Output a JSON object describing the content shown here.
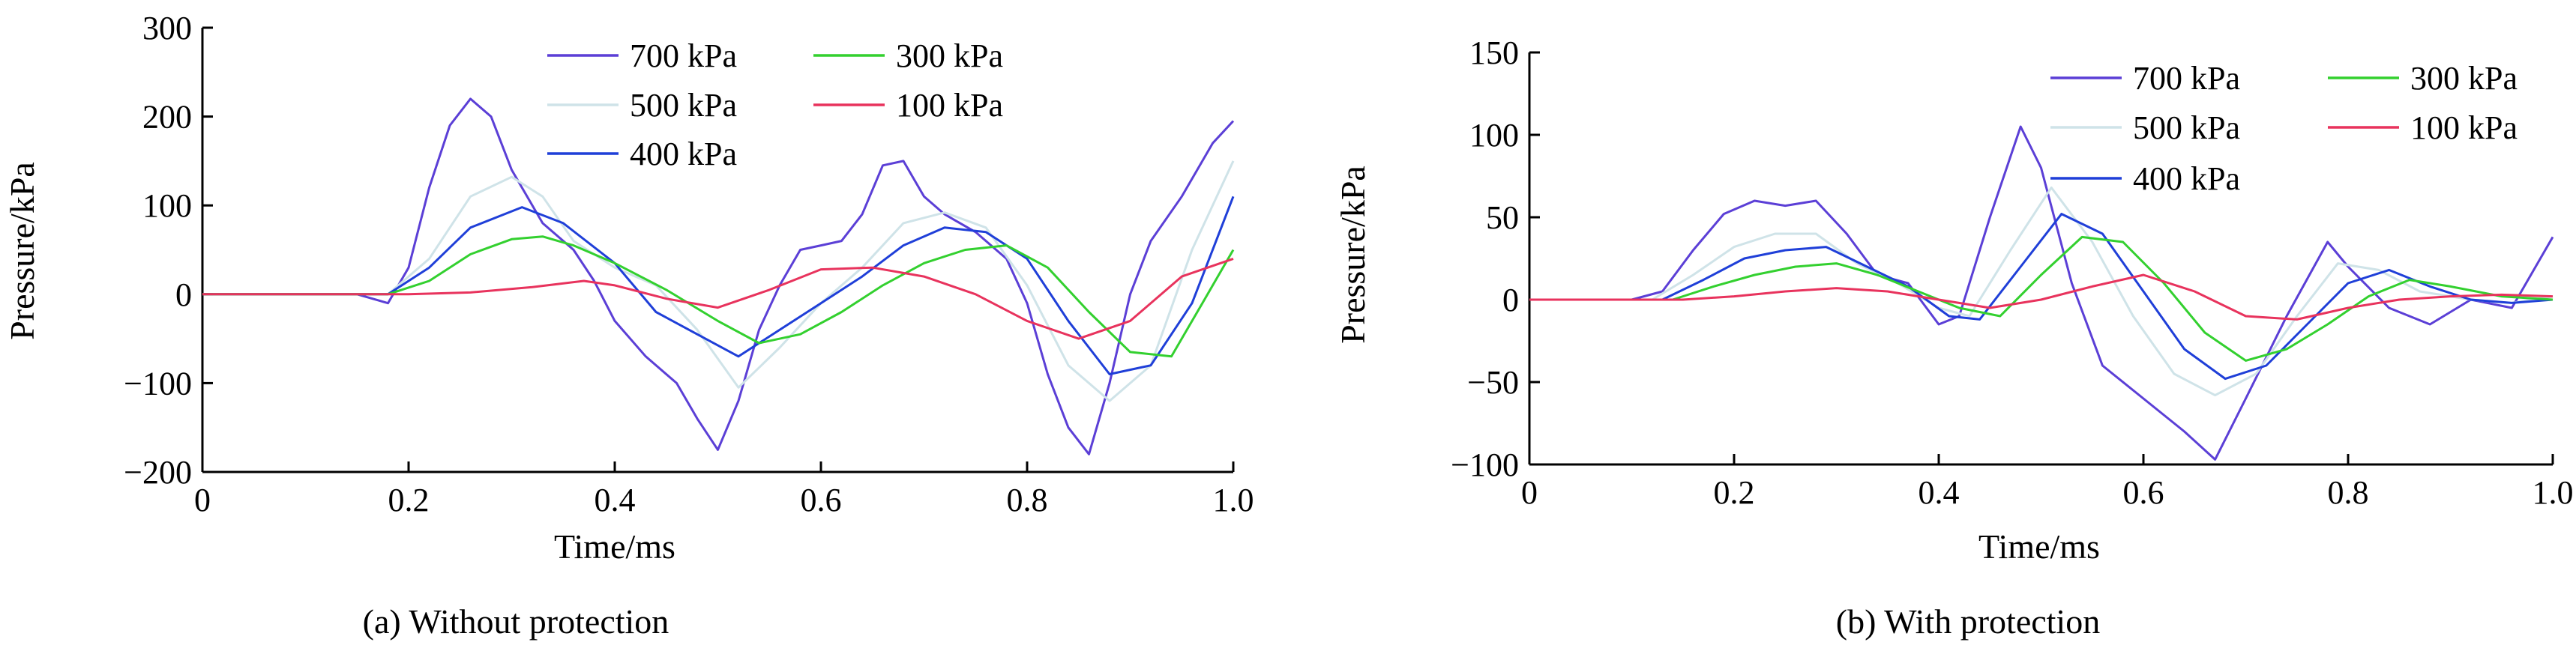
{
  "figure": {
    "colors": {
      "700 kPa": "#5b3fd6",
      "500 kPa": "#cfe3e8",
      "400 kPa": "#1f3fd8",
      "300 kPa": "#33d02f",
      "100 kPa": "#e8335d"
    }
  },
  "chart_data": [
    {
      "type": "line",
      "caption": "(a) Without protection",
      "xlabel": "Time/ms",
      "ylabel": "Pressure/kPa",
      "xlim": [
        0,
        1.0
      ],
      "ylim": [
        -200,
        300
      ],
      "xticks": [
        "0",
        "0.2",
        "0.4",
        "0.6",
        "0.8",
        "1.0"
      ],
      "yticks": [
        "−200",
        "−100",
        "0",
        "100",
        "200",
        "300"
      ],
      "legend": "top-right, 2 columns",
      "series": [
        {
          "name": "700 kPa",
          "color": "#5b3fd6",
          "x": [
            0,
            0.15,
            0.18,
            0.2,
            0.22,
            0.24,
            0.26,
            0.28,
            0.3,
            0.33,
            0.36,
            0.38,
            0.4,
            0.43,
            0.46,
            0.48,
            0.5,
            0.52,
            0.54,
            0.56,
            0.58,
            0.6,
            0.62,
            0.64,
            0.66,
            0.68,
            0.7,
            0.72,
            0.75,
            0.78,
            0.8,
            0.82,
            0.84,
            0.86,
            0.88,
            0.9,
            0.92,
            0.95,
            0.98,
            1.0
          ],
          "y": [
            0,
            0,
            -10,
            30,
            120,
            190,
            220,
            200,
            140,
            80,
            50,
            15,
            -30,
            -70,
            -100,
            -140,
            -175,
            -120,
            -40,
            10,
            50,
            55,
            60,
            90,
            145,
            150,
            110,
            90,
            70,
            40,
            -10,
            -90,
            -150,
            -180,
            -100,
            0,
            60,
            110,
            170,
            195
          ]
        },
        {
          "name": "500 kPa",
          "color": "#cfe3e8",
          "x": [
            0,
            0.18,
            0.22,
            0.26,
            0.3,
            0.33,
            0.36,
            0.4,
            0.44,
            0.48,
            0.52,
            0.56,
            0.6,
            0.64,
            0.68,
            0.72,
            0.76,
            0.8,
            0.84,
            0.88,
            0.92,
            0.96,
            1.0
          ],
          "y": [
            0,
            0,
            40,
            110,
            132,
            110,
            60,
            30,
            10,
            -40,
            -105,
            -60,
            -10,
            30,
            80,
            92,
            75,
            10,
            -80,
            -120,
            -80,
            50,
            150
          ]
        },
        {
          "name": "400 kPa",
          "color": "#1f3fd8",
          "x": [
            0,
            0.18,
            0.22,
            0.26,
            0.31,
            0.35,
            0.4,
            0.44,
            0.48,
            0.52,
            0.56,
            0.6,
            0.64,
            0.68,
            0.72,
            0.76,
            0.8,
            0.84,
            0.88,
            0.92,
            0.96,
            1.0
          ],
          "y": [
            0,
            0,
            30,
            75,
            98,
            80,
            35,
            -20,
            -45,
            -70,
            -40,
            -10,
            20,
            55,
            75,
            70,
            40,
            -30,
            -90,
            -80,
            -10,
            110
          ]
        },
        {
          "name": "300 kPa",
          "color": "#33d02f",
          "x": [
            0,
            0.18,
            0.22,
            0.26,
            0.3,
            0.33,
            0.36,
            0.4,
            0.45,
            0.5,
            0.54,
            0.58,
            0.62,
            0.66,
            0.7,
            0.74,
            0.78,
            0.82,
            0.86,
            0.9,
            0.94,
            0.97,
            1.0
          ],
          "y": [
            0,
            0,
            15,
            45,
            62,
            65,
            55,
            35,
            5,
            -30,
            -55,
            -45,
            -20,
            10,
            35,
            50,
            55,
            30,
            -20,
            -65,
            -70,
            -10,
            50
          ]
        },
        {
          "name": "100 kPa",
          "color": "#e8335d",
          "x": [
            0,
            0.2,
            0.26,
            0.32,
            0.37,
            0.4,
            0.45,
            0.5,
            0.55,
            0.6,
            0.65,
            0.7,
            0.75,
            0.8,
            0.85,
            0.9,
            0.95,
            1.0
          ],
          "y": [
            0,
            0,
            2,
            8,
            15,
            10,
            -5,
            -15,
            5,
            28,
            30,
            20,
            0,
            -30,
            -50,
            -30,
            20,
            40
          ]
        }
      ]
    },
    {
      "type": "line",
      "caption": "(b) With protection",
      "xlabel": "Time/ms",
      "ylabel": "Pressure/kPa",
      "xlim": [
        0,
        1.0
      ],
      "ylim": [
        -100,
        150
      ],
      "xticks": [
        "0",
        "0.2",
        "0.4",
        "0.6",
        "0.8",
        "1.0"
      ],
      "yticks": [
        "−100",
        "−50",
        "0",
        "50",
        "100",
        "150"
      ],
      "legend": "top-right, 2 columns",
      "series": [
        {
          "name": "700 kPa",
          "color": "#5b3fd6",
          "x": [
            0,
            0.1,
            0.13,
            0.16,
            0.19,
            0.22,
            0.25,
            0.28,
            0.31,
            0.34,
            0.37,
            0.4,
            0.42,
            0.45,
            0.48,
            0.5,
            0.53,
            0.56,
            0.6,
            0.64,
            0.67,
            0.7,
            0.74,
            0.78,
            0.8,
            0.84,
            0.88,
            0.92,
            0.96,
            1.0
          ],
          "y": [
            0,
            0,
            5,
            30,
            52,
            60,
            57,
            60,
            40,
            15,
            10,
            -15,
            -10,
            50,
            105,
            80,
            10,
            -40,
            -60,
            -80,
            -97,
            -60,
            -10,
            35,
            20,
            -5,
            -15,
            0,
            -5,
            38
          ]
        },
        {
          "name": "500 kPa",
          "color": "#cfe3e8",
          "x": [
            0,
            0.12,
            0.16,
            0.2,
            0.24,
            0.28,
            0.32,
            0.36,
            0.4,
            0.43,
            0.47,
            0.51,
            0.55,
            0.59,
            0.63,
            0.67,
            0.71,
            0.75,
            0.79,
            0.83,
            0.87,
            0.92,
            0.96,
            1.0
          ],
          "y": [
            0,
            0,
            15,
            32,
            40,
            40,
            22,
            10,
            -5,
            -10,
            30,
            68,
            35,
            -10,
            -45,
            -58,
            -45,
            -10,
            22,
            18,
            5,
            0,
            -2,
            2
          ]
        },
        {
          "name": "400 kPa",
          "color": "#1f3fd8",
          "x": [
            0,
            0.13,
            0.17,
            0.21,
            0.25,
            0.29,
            0.33,
            0.37,
            0.41,
            0.44,
            0.48,
            0.52,
            0.56,
            0.6,
            0.64,
            0.68,
            0.72,
            0.76,
            0.8,
            0.84,
            0.88,
            0.92,
            0.96,
            1.0
          ],
          "y": [
            0,
            0,
            12,
            25,
            30,
            32,
            20,
            8,
            -10,
            -12,
            20,
            52,
            40,
            5,
            -30,
            -48,
            -40,
            -15,
            10,
            18,
            8,
            0,
            -2,
            0
          ]
        },
        {
          "name": "300 kPa",
          "color": "#33d02f",
          "x": [
            0,
            0.14,
            0.18,
            0.22,
            0.26,
            0.3,
            0.34,
            0.38,
            0.42,
            0.46,
            0.5,
            0.54,
            0.58,
            0.62,
            0.66,
            0.7,
            0.74,
            0.78,
            0.82,
            0.86,
            0.9,
            0.95,
            1.0
          ],
          "y": [
            0,
            0,
            8,
            15,
            20,
            22,
            15,
            5,
            -5,
            -10,
            15,
            38,
            35,
            10,
            -20,
            -37,
            -30,
            -15,
            2,
            12,
            8,
            2,
            0
          ]
        },
        {
          "name": "100 kPa",
          "color": "#e8335d",
          "x": [
            0,
            0.15,
            0.2,
            0.25,
            0.3,
            0.35,
            0.4,
            0.45,
            0.5,
            0.55,
            0.6,
            0.65,
            0.7,
            0.75,
            0.8,
            0.85,
            0.9,
            0.95,
            1.0
          ],
          "y": [
            0,
            0,
            2,
            5,
            7,
            5,
            0,
            -5,
            0,
            8,
            15,
            5,
            -10,
            -12,
            -5,
            0,
            2,
            3,
            2
          ]
        }
      ]
    }
  ]
}
